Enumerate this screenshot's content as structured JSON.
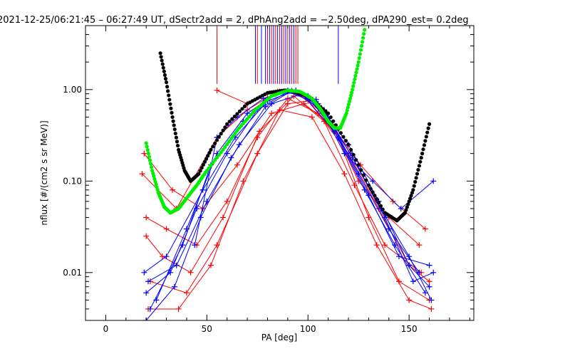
{
  "chart_data": {
    "type": "scatter",
    "title": "2021-12-25/06:21:45 – 06:27:49 UT, dSectr2add = 2, dPhAng2add = −2.50deg, dPA290_est=   0.2deg",
    "xlabel": "PA [deg]",
    "ylabel": "nflux [#/(cm2 s sr MeV)]",
    "xlim": [
      -10,
      182
    ],
    "ylim": [
      0.003,
      5.0
    ],
    "yscale": "log",
    "grid": false,
    "x_ticks": [
      0,
      50,
      100,
      150
    ],
    "x_tick_labels": [
      "0",
      "50",
      "100",
      "150"
    ],
    "y_ticks": [
      0.01,
      0.1,
      1.0
    ],
    "y_tick_labels": [
      "0.01",
      "0.10",
      "1.00"
    ],
    "colors": {
      "red": "#ff0000",
      "blue": "#0000ff",
      "green": "#00ee00",
      "black": "#000000"
    },
    "vertical_markers": {
      "red": [
        55,
        75,
        80,
        82,
        84,
        86,
        88,
        90,
        92,
        94,
        95
      ],
      "blue": [
        74,
        77,
        79,
        81,
        83,
        85,
        87,
        89,
        91,
        93,
        115
      ]
    },
    "spectra_red": [
      {
        "pa": [
          20,
          30,
          45,
          60,
          75,
          90,
          105,
          120,
          135,
          150,
          160
        ],
        "flux": [
          0.04,
          0.03,
          0.02,
          0.06,
          0.3,
          0.8,
          0.55,
          0.2,
          0.05,
          0.012,
          0.008
        ]
      },
      {
        "pa": [
          18,
          35,
          55,
          70,
          85,
          95,
          110,
          125,
          140,
          155
        ],
        "flux": [
          0.12,
          0.05,
          0.3,
          0.6,
          0.95,
          0.9,
          0.5,
          0.1,
          0.04,
          0.02
        ]
      },
      {
        "pa": [
          22,
          40,
          55,
          75,
          90,
          100,
          115,
          130,
          145,
          160
        ],
        "flux": [
          0.008,
          0.006,
          0.02,
          0.2,
          0.7,
          0.75,
          0.3,
          0.04,
          0.008,
          0.005
        ]
      },
      {
        "pa": [
          19,
          33,
          48,
          65,
          82,
          98,
          112,
          126,
          142,
          158
        ],
        "flux": [
          0.2,
          0.08,
          0.05,
          0.15,
          0.55,
          0.7,
          0.4,
          0.15,
          0.06,
          0.03
        ]
      },
      {
        "pa": [
          21,
          36,
          52,
          68,
          86,
          102,
          118,
          134,
          150,
          161
        ],
        "flux": [
          0.004,
          0.004,
          0.012,
          0.1,
          0.6,
          0.5,
          0.12,
          0.02,
          0.005,
          0.004
        ]
      },
      {
        "pa": [
          55,
          70,
          80,
          90,
          100
        ],
        "flux": [
          0.98,
          0.7,
          0.9,
          0.95,
          0.8
        ]
      },
      {
        "pa": [
          20,
          28,
          42,
          58,
          76,
          93,
          108,
          123,
          138,
          156
        ],
        "flux": [
          0.025,
          0.015,
          0.01,
          0.04,
          0.35,
          0.85,
          0.45,
          0.09,
          0.02,
          0.01
        ]
      }
    ],
    "spectra_blue": [
      {
        "pa": [
          20,
          32,
          45,
          60,
          75,
          90,
          105,
          120,
          135,
          150,
          160
        ],
        "flux": [
          0.006,
          0.01,
          0.05,
          0.2,
          0.6,
          0.95,
          0.7,
          0.25,
          0.06,
          0.012,
          0.007
        ]
      },
      {
        "pa": [
          22,
          38,
          52,
          68,
          84,
          96,
          110,
          125,
          140,
          155
        ],
        "flux": [
          0.004,
          0.02,
          0.15,
          0.45,
          0.9,
          0.92,
          0.5,
          0.12,
          0.03,
          0.01
        ]
      },
      {
        "pa": [
          19,
          30,
          48,
          64,
          80,
          94,
          108,
          122,
          138,
          152,
          162
        ],
        "flux": [
          0.01,
          0.015,
          0.08,
          0.3,
          0.75,
          0.98,
          0.6,
          0.18,
          0.04,
          0.008,
          0.01
        ]
      },
      {
        "pa": [
          25,
          40,
          55,
          70,
          86,
          100,
          115,
          130,
          145,
          160
        ],
        "flux": [
          0.005,
          0.03,
          0.2,
          0.55,
          0.95,
          0.85,
          0.3,
          0.07,
          0.015,
          0.012
        ]
      },
      {
        "pa": [
          21,
          35,
          50,
          66,
          82,
          97,
          113,
          128,
          143,
          158
        ],
        "flux": [
          0.008,
          0.012,
          0.06,
          0.25,
          0.7,
          0.9,
          0.35,
          0.08,
          0.02,
          0.006
        ]
      },
      {
        "pa": [
          44,
          55,
          65,
          78,
          90,
          104,
          118,
          132,
          146,
          162
        ],
        "flux": [
          0.02,
          0.3,
          0.5,
          0.8,
          0.98,
          0.78,
          0.2,
          0.1,
          0.05,
          0.1
        ]
      },
      {
        "pa": [
          20,
          34,
          47,
          62,
          79,
          92,
          106,
          121,
          136,
          150,
          161
        ],
        "flux": [
          0.003,
          0.007,
          0.04,
          0.18,
          0.65,
          0.97,
          0.62,
          0.2,
          0.05,
          0.015,
          0.005
        ]
      }
    ],
    "fit_black": {
      "x": [
        27,
        30,
        33,
        36,
        39,
        42,
        46,
        52,
        60,
        70,
        80,
        88,
        92,
        100,
        110,
        120,
        130,
        138,
        144,
        148,
        152,
        156,
        160
      ],
      "y": [
        2.5,
        1.2,
        0.5,
        0.22,
        0.13,
        0.1,
        0.12,
        0.22,
        0.42,
        0.7,
        0.92,
        0.98,
        0.97,
        0.85,
        0.55,
        0.25,
        0.09,
        0.045,
        0.037,
        0.045,
        0.08,
        0.18,
        0.42
      ]
    },
    "fit_green": {
      "x": [
        20,
        23,
        26,
        29,
        32,
        36,
        40,
        45,
        50,
        58,
        66,
        74,
        82,
        90,
        96,
        102,
        106,
        110,
        113,
        116,
        119,
        122,
        125,
        128
      ],
      "y": [
        0.26,
        0.13,
        0.075,
        0.052,
        0.045,
        0.05,
        0.065,
        0.09,
        0.13,
        0.22,
        0.38,
        0.6,
        0.85,
        0.98,
        0.95,
        0.8,
        0.62,
        0.45,
        0.38,
        0.38,
        0.55,
        1.0,
        2.0,
        4.5
      ]
    }
  }
}
